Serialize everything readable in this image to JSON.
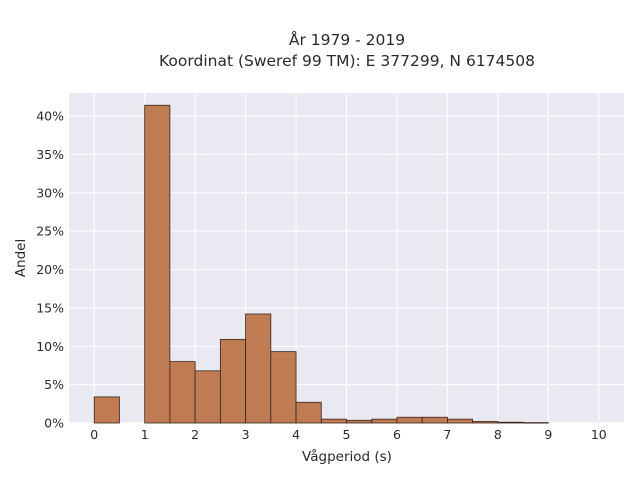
{
  "chart_data": {
    "type": "bar",
    "title_lines": [
      "År 1979 - 2019",
      "Koordinat (Sweref 99 TM): E 377299, N 6174508"
    ],
    "xlabel": "Vågperiod (s)",
    "ylabel": "Andel",
    "x_ticks": [
      "0",
      "1",
      "2",
      "3",
      "4",
      "5",
      "6",
      "7",
      "8",
      "9",
      "10"
    ],
    "y_ticks": [
      "0%",
      "5%",
      "10%",
      "15%",
      "20%",
      "25%",
      "30%",
      "35%",
      "40%"
    ],
    "xlim": [
      -0.5,
      10.5
    ],
    "ylim": [
      0,
      43
    ],
    "bin_width": 0.5,
    "bins": [
      {
        "x0": 0.0,
        "value": 3.4
      },
      {
        "x0": 1.0,
        "value": 41.4
      },
      {
        "x0": 1.5,
        "value": 8.0
      },
      {
        "x0": 2.0,
        "value": 6.8
      },
      {
        "x0": 2.5,
        "value": 10.9
      },
      {
        "x0": 3.0,
        "value": 14.2
      },
      {
        "x0": 3.5,
        "value": 9.3
      },
      {
        "x0": 4.0,
        "value": 2.7
      },
      {
        "x0": 4.5,
        "value": 0.5
      },
      {
        "x0": 5.0,
        "value": 0.35
      },
      {
        "x0": 5.5,
        "value": 0.5
      },
      {
        "x0": 6.0,
        "value": 0.75
      },
      {
        "x0": 6.5,
        "value": 0.75
      },
      {
        "x0": 7.0,
        "value": 0.5
      },
      {
        "x0": 7.5,
        "value": 0.2
      },
      {
        "x0": 8.0,
        "value": 0.1
      },
      {
        "x0": 8.5,
        "value": 0.05
      }
    ],
    "grid": true,
    "colors": {
      "bar_fill": "#bf7b52",
      "bar_stroke": "#3a2418",
      "plot_bg": "#e9e9f2",
      "grid": "#ffffff"
    }
  }
}
